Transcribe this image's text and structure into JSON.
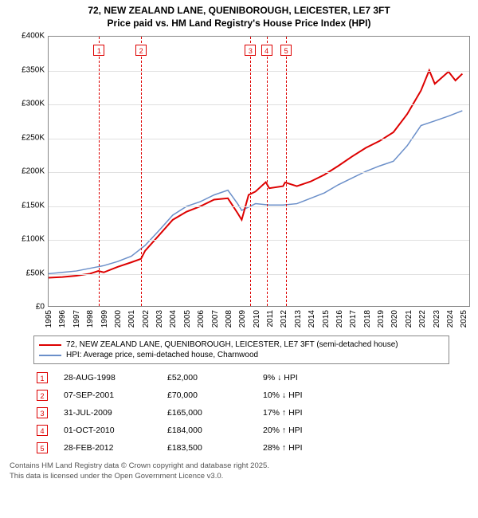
{
  "title_line1": "72, NEW ZEALAND LANE, QUENIBOROUGH, LEICESTER, LE7 3FT",
  "title_line2": "Price paid vs. HM Land Registry's House Price Index (HPI)",
  "chart": {
    "type": "line",
    "xlim": [
      1995,
      2025.5
    ],
    "ylim": [
      0,
      400000
    ],
    "ytick_step": 50000,
    "yticks": [
      "£0",
      "£50K",
      "£100K",
      "£150K",
      "£200K",
      "£250K",
      "£300K",
      "£350K",
      "£400K"
    ],
    "xticks": [
      1995,
      1996,
      1997,
      1998,
      1999,
      2000,
      2001,
      2002,
      2003,
      2004,
      2005,
      2006,
      2007,
      2008,
      2009,
      2010,
      2011,
      2012,
      2013,
      2014,
      2015,
      2016,
      2017,
      2018,
      2019,
      2020,
      2021,
      2022,
      2023,
      2024,
      2025
    ],
    "grid_color": "#e0e0e0",
    "background_color": "#ffffff",
    "series": [
      {
        "name": "72, NEW ZEALAND LANE, QUENIBOROUGH, LEICESTER, LE7 3FT (semi-detached house)",
        "color": "#dd0000",
        "line_width": 2,
        "points": [
          [
            1995,
            42000
          ],
          [
            1996,
            43000
          ],
          [
            1997,
            45000
          ],
          [
            1998,
            48000
          ],
          [
            1998.6,
            52000
          ],
          [
            1999,
            50000
          ],
          [
            2000,
            58000
          ],
          [
            2001,
            65000
          ],
          [
            2001.7,
            70000
          ],
          [
            2002,
            82000
          ],
          [
            2003,
            105000
          ],
          [
            2004,
            128000
          ],
          [
            2005,
            140000
          ],
          [
            2006,
            148000
          ],
          [
            2007,
            158000
          ],
          [
            2008,
            160000
          ],
          [
            2008.7,
            138000
          ],
          [
            2009,
            128000
          ],
          [
            2009.5,
            165000
          ],
          [
            2010,
            170000
          ],
          [
            2010.75,
            184000
          ],
          [
            2011,
            175000
          ],
          [
            2012,
            178000
          ],
          [
            2012.15,
            183500
          ],
          [
            2013,
            178000
          ],
          [
            2014,
            185000
          ],
          [
            2015,
            195000
          ],
          [
            2016,
            208000
          ],
          [
            2017,
            222000
          ],
          [
            2018,
            235000
          ],
          [
            2019,
            245000
          ],
          [
            2020,
            258000
          ],
          [
            2021,
            285000
          ],
          [
            2022,
            320000
          ],
          [
            2022.6,
            350000
          ],
          [
            2023,
            330000
          ],
          [
            2024,
            348000
          ],
          [
            2024.5,
            335000
          ],
          [
            2025,
            345000
          ]
        ]
      },
      {
        "name": "HPI: Average price, semi-detached house, Charnwood",
        "color": "#6b8fc9",
        "line_width": 1.5,
        "points": [
          [
            1995,
            48000
          ],
          [
            1996,
            50000
          ],
          [
            1997,
            52000
          ],
          [
            1998,
            56000
          ],
          [
            1999,
            60000
          ],
          [
            2000,
            66000
          ],
          [
            2001,
            74000
          ],
          [
            2002,
            90000
          ],
          [
            2003,
            112000
          ],
          [
            2004,
            135000
          ],
          [
            2005,
            148000
          ],
          [
            2006,
            155000
          ],
          [
            2007,
            165000
          ],
          [
            2008,
            172000
          ],
          [
            2008.7,
            152000
          ],
          [
            2009,
            142000
          ],
          [
            2010,
            152000
          ],
          [
            2011,
            150000
          ],
          [
            2012,
            150000
          ],
          [
            2013,
            152000
          ],
          [
            2014,
            160000
          ],
          [
            2015,
            168000
          ],
          [
            2016,
            180000
          ],
          [
            2017,
            190000
          ],
          [
            2018,
            200000
          ],
          [
            2019,
            208000
          ],
          [
            2020,
            215000
          ],
          [
            2021,
            238000
          ],
          [
            2022,
            268000
          ],
          [
            2023,
            275000
          ],
          [
            2024,
            282000
          ],
          [
            2025,
            290000
          ]
        ]
      }
    ],
    "markers": [
      {
        "num": "1",
        "x": 1998.65
      },
      {
        "num": "2",
        "x": 2001.68
      },
      {
        "num": "3",
        "x": 2009.58
      },
      {
        "num": "4",
        "x": 2010.75
      },
      {
        "num": "5",
        "x": 2012.16
      }
    ],
    "marker_color": "#dd0000"
  },
  "legend": {
    "items": [
      {
        "color": "#dd0000",
        "label": "72, NEW ZEALAND LANE, QUENIBOROUGH, LEICESTER, LE7 3FT (semi-detached house)"
      },
      {
        "color": "#6b8fc9",
        "label": "HPI: Average price, semi-detached house, Charnwood"
      }
    ]
  },
  "events": [
    {
      "num": "1",
      "date": "28-AUG-1998",
      "price": "£52,000",
      "delta": "9% ↓ HPI"
    },
    {
      "num": "2",
      "date": "07-SEP-2001",
      "price": "£70,000",
      "delta": "10% ↓ HPI"
    },
    {
      "num": "3",
      "date": "31-JUL-2009",
      "price": "£165,000",
      "delta": "17% ↑ HPI"
    },
    {
      "num": "4",
      "date": "01-OCT-2010",
      "price": "£184,000",
      "delta": "20% ↑ HPI"
    },
    {
      "num": "5",
      "date": "28-FEB-2012",
      "price": "£183,500",
      "delta": "28% ↑ HPI"
    }
  ],
  "footer_line1": "Contains HM Land Registry data © Crown copyright and database right 2025.",
  "footer_line2": "This data is licensed under the Open Government Licence v3.0."
}
